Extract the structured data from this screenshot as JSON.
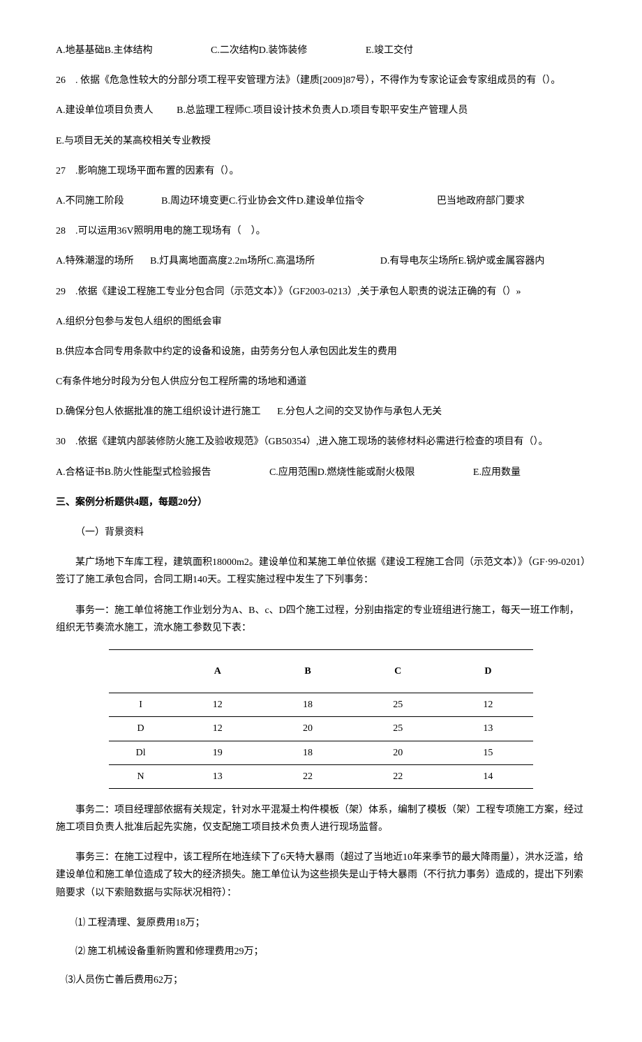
{
  "q25_options": {
    "a": "A.地基基础B.主体结构",
    "c": "C.二次结构D.装饰装修",
    "e": "E.竣工交付"
  },
  "q26": {
    "stem": "26　. 依据《危急性较大的分部分项工程平安管理方法》（建质[2009]87号），不得作为专家论证会专家组成员的有（）。",
    "line1_a": "A.建设单位项目负责人",
    "line1_b": "B.总监理工程师C.项目设计技术负责人D.项目专职平安生产管理人员",
    "line2": "E.与项目无关的某高校相关专业教授"
  },
  "q27": {
    "stem": "27　.影响施工现场平面布置的因素有（）。",
    "a": "A.不同施工阶段",
    "b": "B.周边环境变更C.行业协会文件D.建设单位指令",
    "e": "巴当地政府部门要求"
  },
  "q28": {
    "stem": "28　.可以运用36V照明用电的施工现场有（　）。",
    "a": "A.特殊潮湿的场所",
    "b": "B.灯具离地面高度2.2m场所C.高温场所",
    "d": "D.有导电灰尘场所E.锅炉或金属容器内"
  },
  "q29": {
    "stem": "29　.依据《建设工程施工专业分包合同（示范文本）》（GF2003-0213）,关于承包人职责的说法正确的有（）»",
    "a": "A.组织分包参与发包人组织的图纸会审",
    "b": "B.供应本合同专用条款中约定的设备和设施，由劳务分包人承包因此发生的费用",
    "c": "C有条件地分时段为分包人供应分包工程所需的场地和通道",
    "d": "D.确保分包人依据批准的施工组织设计进行施工",
    "e": "E.分包人之间的交叉协作与承包人无关"
  },
  "q30": {
    "stem": "30　.依据《建筑内部装修防火施工及验收规范》（GB50354）,进入施工现场的装修材料必需进行检查的项目有（）。",
    "a": "A.合格证书B.防火性能型式检验报告",
    "c": "C.应用范围D.燃烧性能或耐火极限",
    "e": "E.应用数量"
  },
  "section3_title": "三、案例分析题供4题，每题20分）",
  "case1_title": "（一）背景资料",
  "case1_p1": "某广场地下车库工程，建筑面积18000m2。建设单位和某施工单位依据《建设工程施工合同（示范文本）》（GF·99-0201）签订了施工承包合同，合同工期140天。工程实施过程中发生了下列事务：",
  "case1_p2": "事务一：施工单位将施工作业划分为A、B、c、D四个施工过程，分别由指定的专业班组进行施工，每天一班工作制，组织无节奏流水施工，流水施工参数见下表：",
  "table": {
    "headers": [
      "",
      "A",
      "B",
      "C",
      "D"
    ],
    "rows": [
      [
        "I",
        "12",
        "18",
        "25",
        "12"
      ],
      [
        "D",
        "12",
        "20",
        "25",
        "13"
      ],
      [
        "Dl",
        "19",
        "18",
        "20",
        "15"
      ],
      [
        "N",
        "13",
        "22",
        "22",
        "14"
      ]
    ]
  },
  "case1_p3": "事务二：项目经理部依据有关规定，针对水平混凝土构件模板（架）体系，编制了模板（架）工程专项施工方案，经过施工项目负责人批准后起先实施，仅支配施工项目技术负责人进行现场监督。",
  "case1_p4": "事务三：在施工过程中，该工程所在地连续下了6天特大暴雨（超过了当地近10年来季节的最大降雨量），洪水泛滥，给建设单位和施工单位造成了较大的经济损失。施工单位认为这些损失是山于特大暴雨（不行抗力事务）造成的，提出下列索赔要求（以下索赔数据与实际状况相符）：",
  "case1_list": {
    "item1": "⑴ 工程清理、复原费用18万；",
    "item2": "⑵ 施工机械设备重新购置和修理费用29万；",
    "item3": "⑶人员伤亡善后费用62万；"
  }
}
